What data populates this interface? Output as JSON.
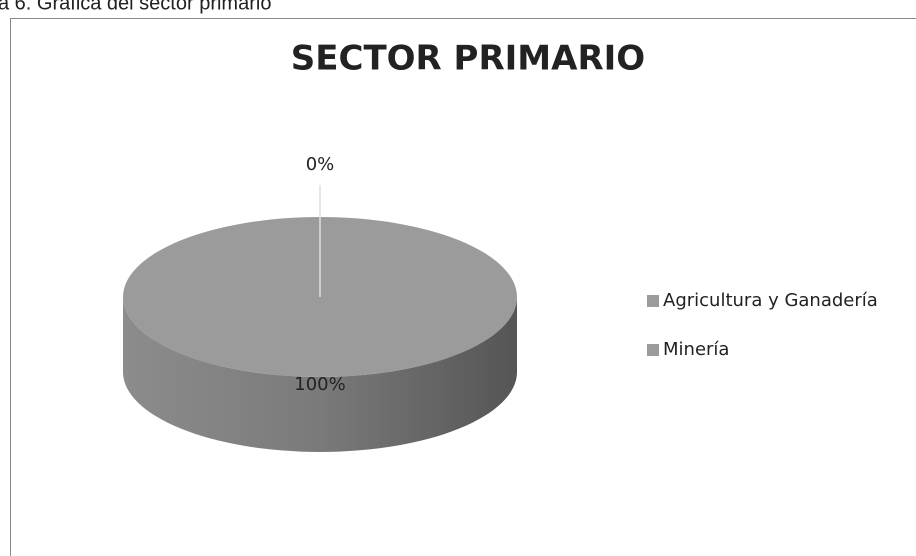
{
  "caption": "a 6. Gráfica del sector primario",
  "chart_data": {
    "type": "pie",
    "title": "SECTOR PRIMARIO",
    "categories": [
      "Agricultura y Ganadería",
      "Minería"
    ],
    "values": [
      100,
      0
    ],
    "value_labels": [
      "100%",
      "0%"
    ],
    "colors": [
      "#9b9b9b",
      "#9b9b9b"
    ],
    "legend": "right"
  }
}
